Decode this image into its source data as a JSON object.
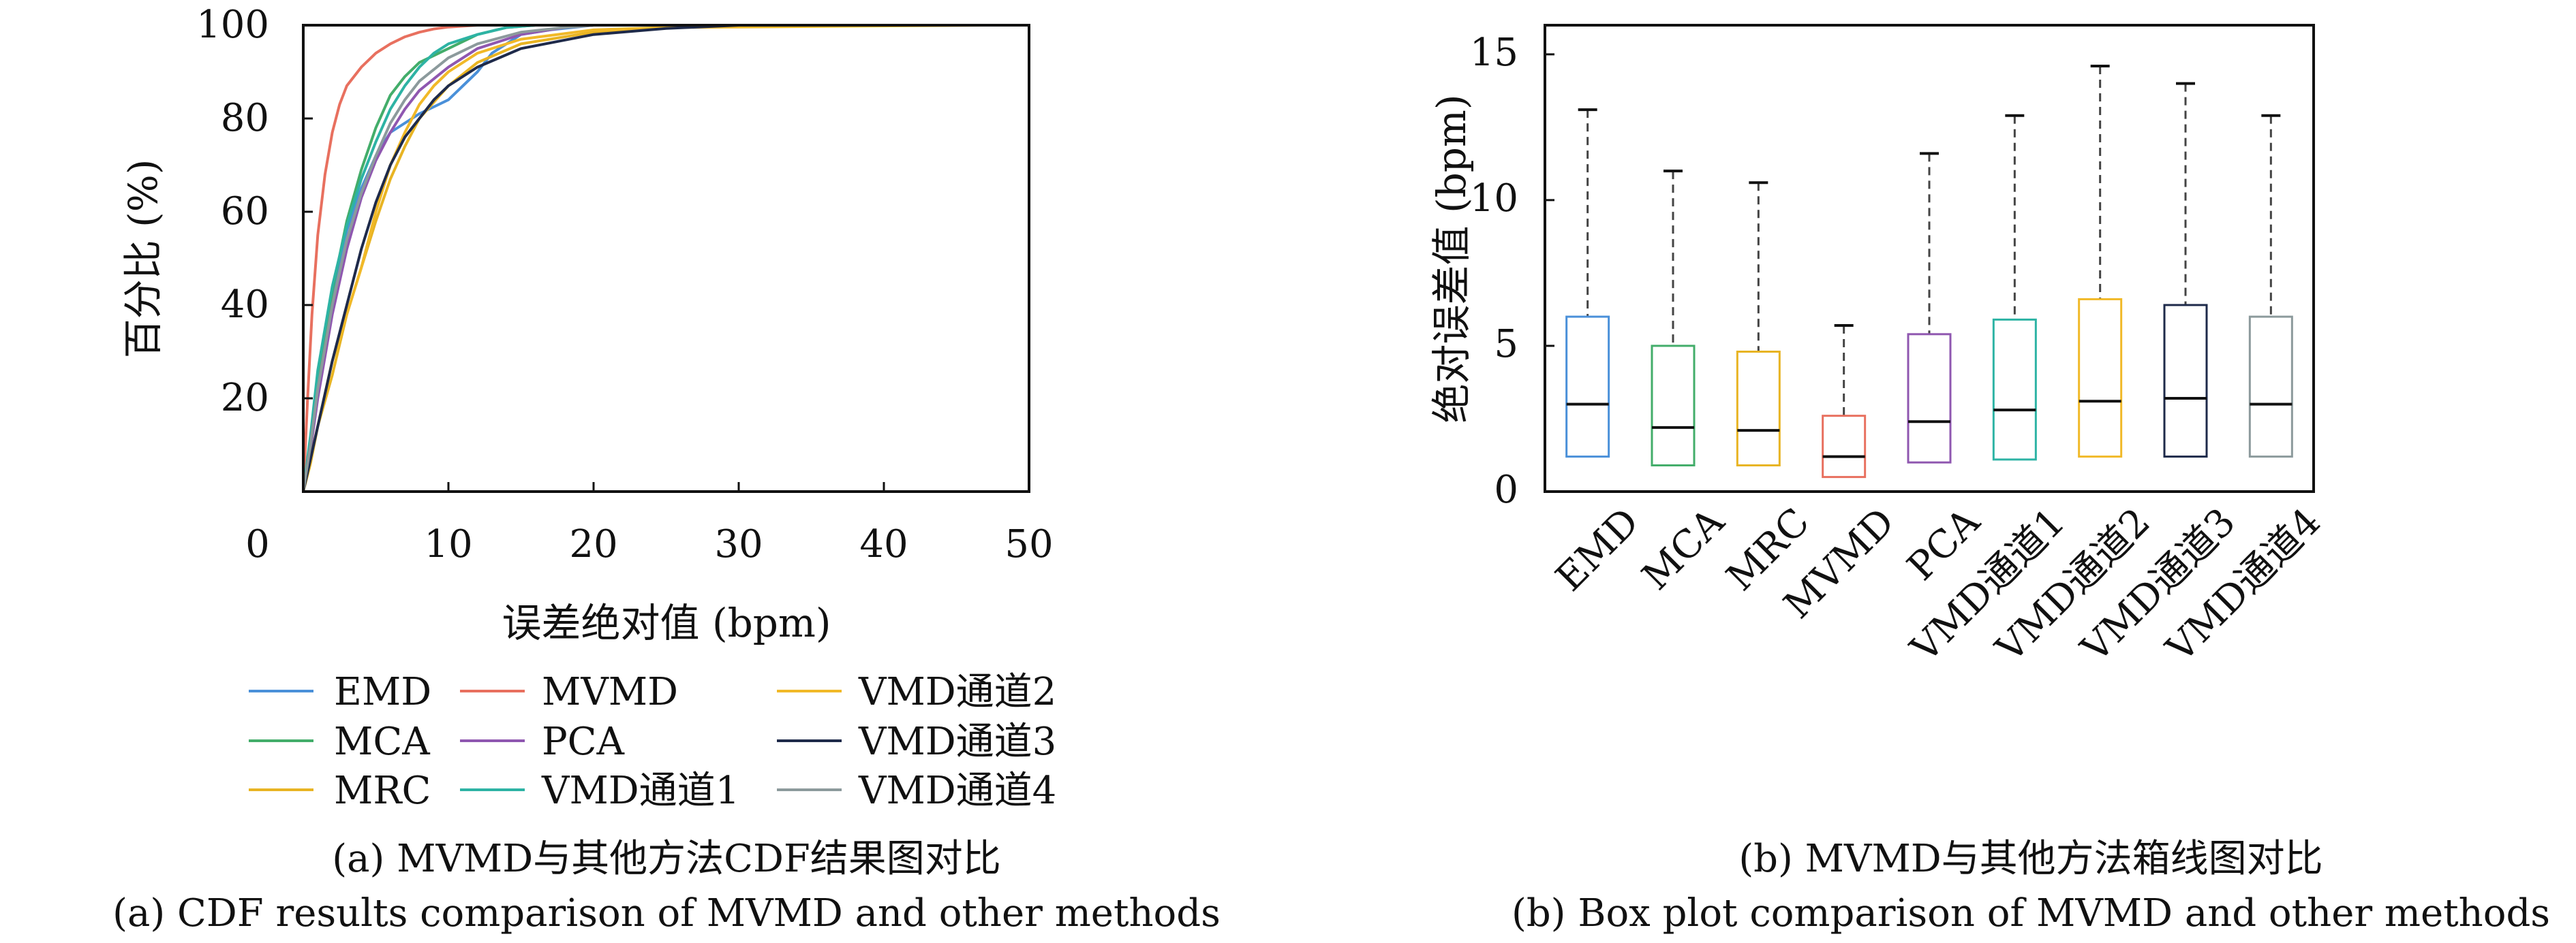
{
  "chart_data": [
    {
      "type": "line",
      "subtype": "cdf",
      "ylabel": "百分比 (%)",
      "xlabel": "误差绝对值 (bpm)",
      "xlim": [
        0,
        50
      ],
      "ylim": [
        0,
        100
      ],
      "x_ticks": [
        "0",
        "10",
        "20",
        "30",
        "40",
        "50"
      ],
      "y_ticks": [
        "20",
        "40",
        "60",
        "80",
        "100"
      ],
      "caption_zh": "(a) MVMD与其他方法CDF结果图对比",
      "caption_en": "(a) CDF results comparison of MVMD and other methods",
      "series": [
        {
          "name": "EMD",
          "color": "#4a90d9",
          "points": [
            [
              0,
              0
            ],
            [
              0.5,
              10
            ],
            [
              1,
              24
            ],
            [
              2,
              42
            ],
            [
              3,
              56
            ],
            [
              4,
              65
            ],
            [
              5,
              72
            ],
            [
              6,
              77
            ],
            [
              8,
              81
            ],
            [
              10,
              84
            ],
            [
              11,
              87
            ],
            [
              12,
              90
            ],
            [
              13,
              94
            ],
            [
              14,
              96
            ],
            [
              15,
              98
            ],
            [
              17,
              99
            ],
            [
              20,
              100
            ],
            [
              47,
              100
            ]
          ]
        },
        {
          "name": "MVMD",
          "color": "#e8705f",
          "points": [
            [
              0,
              0
            ],
            [
              0.3,
              20
            ],
            [
              0.6,
              38
            ],
            [
              1,
              55
            ],
            [
              1.5,
              68
            ],
            [
              2,
              77
            ],
            [
              2.5,
              83
            ],
            [
              3,
              87
            ],
            [
              4,
              91
            ],
            [
              5,
              94
            ],
            [
              6,
              96
            ],
            [
              7,
              97.5
            ],
            [
              8,
              98.5
            ],
            [
              9,
              99.2
            ],
            [
              10,
              99.6
            ],
            [
              12,
              100
            ],
            [
              47,
              100
            ]
          ]
        },
        {
          "name": "MCA",
          "color": "#43ad6a",
          "points": [
            [
              0,
              0
            ],
            [
              0.5,
              10
            ],
            [
              1,
              23
            ],
            [
              2,
              43
            ],
            [
              3,
              58
            ],
            [
              4,
              69
            ],
            [
              5,
              78
            ],
            [
              6,
              85
            ],
            [
              7,
              89
            ],
            [
              8,
              92
            ],
            [
              10,
              95
            ],
            [
              12,
              98
            ],
            [
              14,
              99.5
            ],
            [
              16,
              100
            ],
            [
              47,
              100
            ]
          ]
        },
        {
          "name": "PCA",
          "color": "#8f57b0",
          "points": [
            [
              0,
              0
            ],
            [
              0.5,
              9
            ],
            [
              1,
              20
            ],
            [
              2,
              38
            ],
            [
              3,
              52
            ],
            [
              4,
              63
            ],
            [
              5,
              71
            ],
            [
              6,
              77
            ],
            [
              7,
              82
            ],
            [
              8,
              86
            ],
            [
              10,
              91
            ],
            [
              12,
              95
            ],
            [
              15,
              98
            ],
            [
              18,
              99.5
            ],
            [
              20,
              100
            ],
            [
              47,
              100
            ]
          ]
        },
        {
          "name": "MRC",
          "color": "#e8b423",
          "points": [
            [
              0,
              0
            ],
            [
              0.5,
              6
            ],
            [
              1,
              14
            ],
            [
              2,
              25
            ],
            [
              3,
              38
            ],
            [
              4,
              48
            ],
            [
              5,
              58
            ],
            [
              6,
              67
            ],
            [
              7,
              74
            ],
            [
              8,
              80
            ],
            [
              10,
              87
            ],
            [
              12,
              92
            ],
            [
              15,
              96
            ],
            [
              20,
              98.5
            ],
            [
              25,
              99.5
            ],
            [
              30,
              100
            ],
            [
              47,
              100
            ]
          ]
        },
        {
          "name": "VMD通道1",
          "color": "#2db3a4",
          "points": [
            [
              0,
              0
            ],
            [
              0.5,
              12
            ],
            [
              1,
              26
            ],
            [
              2,
              44
            ],
            [
              3,
              57
            ],
            [
              4,
              67
            ],
            [
              5,
              75
            ],
            [
              6,
              82
            ],
            [
              7,
              87
            ],
            [
              8,
              91
            ],
            [
              9,
              94
            ],
            [
              10,
              96
            ],
            [
              12,
              98
            ],
            [
              14,
              99.5
            ],
            [
              16,
              100
            ],
            [
              47,
              100
            ]
          ]
        },
        {
          "name": "VMD通道2",
          "color": "#f1b928",
          "points": [
            [
              0,
              0
            ],
            [
              1,
              14
            ],
            [
              2,
              28
            ],
            [
              3,
              38
            ],
            [
              4,
              48
            ],
            [
              5,
              60
            ],
            [
              6,
              70
            ],
            [
              7,
              77
            ],
            [
              8,
              83
            ],
            [
              9,
              87
            ],
            [
              10,
              90
            ],
            [
              12,
              94
            ],
            [
              15,
              97
            ],
            [
              20,
              99
            ],
            [
              25,
              99.5
            ],
            [
              47,
              100
            ]
          ]
        },
        {
          "name": "VMD通道3",
          "color": "#1e2a4a",
          "points": [
            [
              0,
              0
            ],
            [
              1,
              14
            ],
            [
              2,
              28
            ],
            [
              3,
              40
            ],
            [
              4,
              52
            ],
            [
              5,
              62
            ],
            [
              6,
              70
            ],
            [
              7,
              76
            ],
            [
              8,
              80
            ],
            [
              9,
              84
            ],
            [
              10,
              87
            ],
            [
              12,
              91
            ],
            [
              15,
              95
            ],
            [
              20,
              98
            ],
            [
              25,
              99.3
            ],
            [
              30,
              100
            ],
            [
              47,
              100
            ]
          ]
        },
        {
          "name": "VMD通道4",
          "color": "#8c9a9c",
          "points": [
            [
              0,
              0
            ],
            [
              0.5,
              10
            ],
            [
              1,
              22
            ],
            [
              2,
              40
            ],
            [
              3,
              54
            ],
            [
              4,
              64
            ],
            [
              5,
              72
            ],
            [
              6,
              79
            ],
            [
              7,
              84
            ],
            [
              8,
              88
            ],
            [
              10,
              93
            ],
            [
              12,
              96
            ],
            [
              15,
              98.5
            ],
            [
              18,
              99.5
            ],
            [
              20,
              100
            ],
            [
              47,
              100
            ]
          ]
        }
      ]
    },
    {
      "type": "box",
      "ylabel": "绝对误差值 (bpm)",
      "ylim": [
        0,
        16
      ],
      "y_ticks": [
        "0",
        "5",
        "10",
        "15"
      ],
      "caption_zh": "(b) MVMD与其他方法箱线图对比",
      "caption_en": "(b) Box plot comparison of MVMD and other methods",
      "categories": [
        "EMD",
        "MCA",
        "MRC",
        "MVMD",
        "PCA",
        "VMD通道1",
        "VMD通道2",
        "VMD通道3",
        "VMD通道4"
      ],
      "boxes": [
        {
          "min": 1.2,
          "q1": 1.2,
          "median": 3.0,
          "q3": 6.0,
          "max": 13.1,
          "color": "#4a90d9"
        },
        {
          "min": 0.9,
          "q1": 0.9,
          "median": 2.2,
          "q3": 5.0,
          "max": 11.0,
          "color": "#43ad6a"
        },
        {
          "min": 0.9,
          "q1": 0.9,
          "median": 2.1,
          "q3": 4.8,
          "max": 10.6,
          "color": "#e8b423"
        },
        {
          "min": 0.5,
          "q1": 0.5,
          "median": 1.2,
          "q3": 2.6,
          "max": 5.7,
          "color": "#e8705f"
        },
        {
          "min": 1.0,
          "q1": 1.0,
          "median": 2.4,
          "q3": 5.4,
          "max": 11.6,
          "color": "#8f57b0"
        },
        {
          "min": 1.1,
          "q1": 1.1,
          "median": 2.8,
          "q3": 5.9,
          "max": 12.9,
          "color": "#2db3a4"
        },
        {
          "min": 1.2,
          "q1": 1.2,
          "median": 3.1,
          "q3": 6.6,
          "max": 14.6,
          "color": "#f1b928"
        },
        {
          "min": 1.2,
          "q1": 1.2,
          "median": 3.2,
          "q3": 6.4,
          "max": 14.0,
          "color": "#1e2a4a"
        },
        {
          "min": 1.2,
          "q1": 1.2,
          "median": 3.0,
          "q3": 6.0,
          "max": 12.9,
          "color": "#8c9a9c"
        }
      ]
    }
  ]
}
